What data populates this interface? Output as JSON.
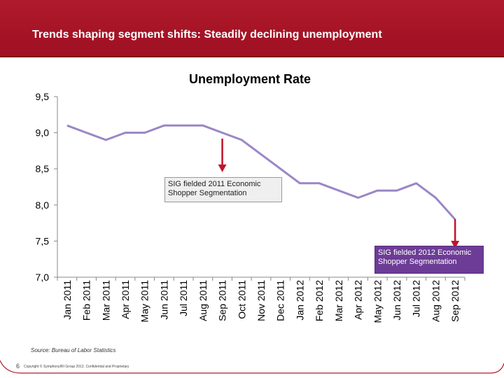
{
  "header": {
    "title": "Trends shaping segment shifts: Steadily declining unemployment"
  },
  "chart_data": {
    "type": "line",
    "title": "Unemployment Rate",
    "xlabel": "",
    "ylabel": "",
    "categories": [
      "Jan 2011",
      "Feb 2011",
      "Mar 2011",
      "Apr 2011",
      "May 2011",
      "Jun 2011",
      "Jul 2011",
      "Aug 2011",
      "Sep 2011",
      "Oct 2011",
      "Nov 2011",
      "Dec 2011",
      "Jan 2012",
      "Feb 2012",
      "Mar 2012",
      "Apr 2012",
      "May 2012",
      "Jun 2012",
      "Jul 2012",
      "Aug 2012",
      "Sep 2012"
    ],
    "values": [
      9.1,
      9.0,
      8.9,
      9.0,
      9.0,
      9.1,
      9.1,
      9.1,
      9.0,
      8.9,
      8.7,
      8.5,
      8.3,
      8.3,
      8.2,
      8.1,
      8.2,
      8.2,
      8.3,
      8.1,
      7.8
    ],
    "ylim": [
      7.0,
      9.5
    ],
    "yticks": [
      7.0,
      7.5,
      8.0,
      8.5,
      9.0,
      9.5
    ],
    "ytick_labels": [
      "7,0",
      "7,5",
      "8,0",
      "8,5",
      "9,0",
      "9,5"
    ],
    "grid": false,
    "line_color": "#9b86c6",
    "annotations": [
      {
        "text": "SIG fielded 2011 Economic Shopper Segmentation",
        "x": "Sep 2011",
        "style": "gray"
      },
      {
        "text": "SIG fielded 2012 Economic Shopper Segmentation",
        "x": "Sep 2012",
        "style": "purple"
      }
    ]
  },
  "colors": {
    "banner": "#a8172a",
    "arrow": "#c0152a",
    "callout_purple": "#6d3c96",
    "callout_gray": "#efefef"
  },
  "footer": {
    "source": "Source: Bureau of Labor Statistics",
    "page_number": "6",
    "copyright": "Copyright © SymphonyIRI Group 2012. Confidential and Proprietary"
  }
}
